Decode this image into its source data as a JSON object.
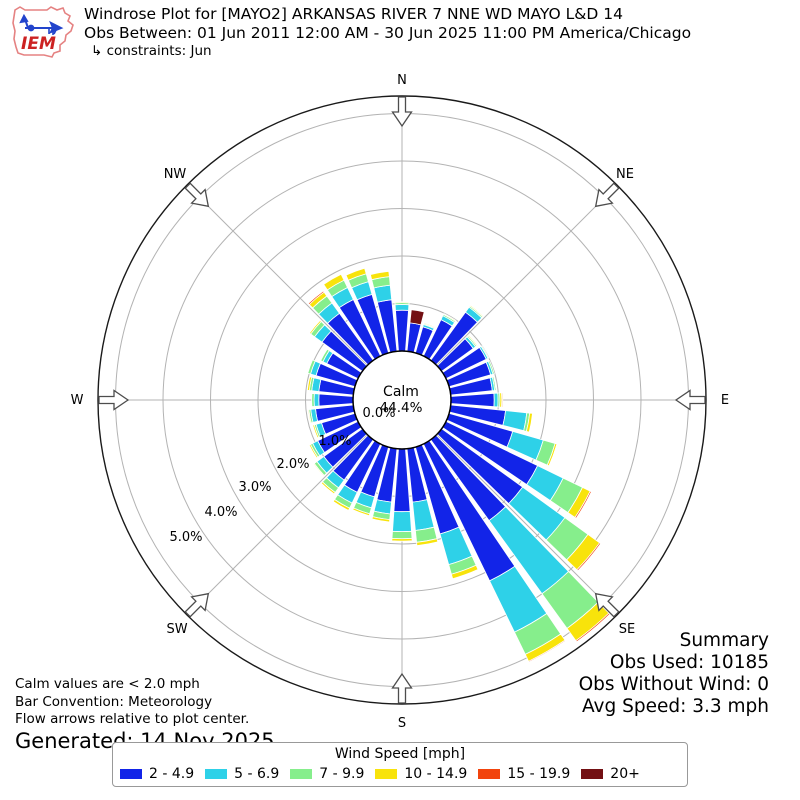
{
  "header": {
    "title": "Windrose Plot for [MAYO2] ARKANSAS RIVER 7 NNE WD MAYO L&D 14",
    "subtitle": "Obs Between: 01 Jun 2011 12:00 AM - 30 Jun 2025 11:00 PM America/Chicago",
    "constraints": "↳ constraints: Jun",
    "logo_text": "IEM"
  },
  "rose": {
    "calm_label": "Calm",
    "calm_value": "44.4%",
    "ring_labels": [
      "0.0%",
      "1.0%",
      "2.0%",
      "3.0%",
      "4.0%",
      "5.0%"
    ],
    "compass": [
      {
        "label": "N",
        "deg": 0
      },
      {
        "label": "NE",
        "deg": 45
      },
      {
        "label": "E",
        "deg": 90
      },
      {
        "label": "SE",
        "deg": 135
      },
      {
        "label": "S",
        "deg": 180
      },
      {
        "label": "SW",
        "deg": 225
      },
      {
        "label": "W",
        "deg": 270
      },
      {
        "label": "NW",
        "deg": 315
      }
    ]
  },
  "chart_data": {
    "type": "windrose",
    "title": "Windrose Plot for [MAYO2] ARKANSAS RIVER 7 NNE WD MAYO L&D 14",
    "units": "percent frequency of wind direction, 10-degree sectors",
    "bar_convention": "Meteorology",
    "calm_percent": 44.4,
    "ring_percent": [
      0,
      1,
      2,
      3,
      4,
      5
    ],
    "speed_bins": [
      {
        "label": "2 - 4.9",
        "color": "#1224e8"
      },
      {
        "label": "5 - 6.9",
        "color": "#2ed1e8"
      },
      {
        "label": "7 - 9.9",
        "color": "#86ee8c"
      },
      {
        "label": "10 - 14.9",
        "color": "#f8e30b"
      },
      {
        "label": "15 - 19.9",
        "color": "#f2440d"
      },
      {
        "label": "20+",
        "color": "#731013"
      }
    ],
    "bars": [
      {
        "deg": 0,
        "segments": [
          0.86,
          0.12,
          0.04,
          0.02,
          0,
          0
        ]
      },
      {
        "deg": 10,
        "segments": [
          0.6,
          0,
          0,
          0,
          0,
          0.28
        ]
      },
      {
        "deg": 20,
        "segments": [
          0.57,
          0.05,
          0.02,
          0.02,
          0,
          0
        ]
      },
      {
        "deg": 30,
        "segments": [
          0.85,
          0.09,
          0.03,
          0.02,
          0,
          0
        ]
      },
      {
        "deg": 40,
        "segments": [
          1.25,
          0.13,
          0.03,
          0.02,
          0,
          0
        ]
      },
      {
        "deg": 50,
        "segments": [
          0.82,
          0.06,
          0.03,
          0.02,
          0,
          0
        ]
      },
      {
        "deg": 60,
        "segments": [
          0.94,
          0.04,
          0.02,
          0,
          0,
          0
        ]
      },
      {
        "deg": 70,
        "segments": [
          0.91,
          0.05,
          0.03,
          0,
          0,
          0
        ]
      },
      {
        "deg": 80,
        "segments": [
          0.88,
          0.05,
          0.03,
          0.01,
          0,
          0
        ]
      },
      {
        "deg": 90,
        "segments": [
          0.91,
          0.08,
          0.04,
          0.04,
          0.02,
          0
        ]
      },
      {
        "deg": 100,
        "segments": [
          1.16,
          0.45,
          0.06,
          0.06,
          0,
          0
        ]
      },
      {
        "deg": 110,
        "segments": [
          1.39,
          0.67,
          0.26,
          0.04,
          0.01,
          0
        ]
      },
      {
        "deg": 120,
        "segments": [
          2.14,
          0.6,
          0.45,
          0.18,
          0.03,
          0
        ]
      },
      {
        "deg": 130,
        "segments": [
          2.1,
          1.1,
          0.6,
          0.3,
          0.03,
          0
        ]
      },
      {
        "deg": 140,
        "segments": [
          2.1,
          1.9,
          0.9,
          0.32,
          0.03,
          0
        ]
      },
      {
        "deg": 150,
        "segments": [
          3.2,
          1.2,
          0.52,
          0.16,
          0.02,
          0
        ]
      },
      {
        "deg": 160,
        "segments": [
          1.9,
          0.67,
          0.21,
          0.1,
          0,
          0
        ]
      },
      {
        "deg": 170,
        "segments": [
          1.13,
          0.6,
          0.25,
          0.07,
          0,
          0
        ]
      },
      {
        "deg": 180,
        "segments": [
          1.32,
          0.42,
          0.15,
          0.05,
          0,
          0
        ]
      },
      {
        "deg": 190,
        "segments": [
          1.13,
          0.25,
          0.12,
          0.05,
          0,
          0
        ]
      },
      {
        "deg": 200,
        "segments": [
          1.09,
          0.24,
          0.13,
          0.04,
          0,
          0
        ]
      },
      {
        "deg": 210,
        "segments": [
          1.13,
          0.25,
          0.12,
          0.05,
          0,
          0
        ]
      },
      {
        "deg": 220,
        "segments": [
          1.05,
          0.2,
          0.12,
          0.04,
          0,
          0
        ]
      },
      {
        "deg": 230,
        "segments": [
          1.0,
          0.18,
          0.07,
          0.02,
          0,
          0
        ]
      },
      {
        "deg": 240,
        "segments": [
          0.94,
          0.12,
          0.05,
          0.03,
          0,
          0
        ]
      },
      {
        "deg": 250,
        "segments": [
          0.73,
          0.12,
          0.04,
          0.03,
          0,
          0
        ]
      },
      {
        "deg": 260,
        "segments": [
          0.8,
          0.1,
          0.04,
          0.02,
          0,
          0
        ]
      },
      {
        "deg": 270,
        "segments": [
          0.72,
          0.1,
          0.05,
          0,
          0,
          0
        ]
      },
      {
        "deg": 280,
        "segments": [
          0.73,
          0.15,
          0.05,
          0.04,
          0,
          0
        ]
      },
      {
        "deg": 290,
        "segments": [
          0.85,
          0.12,
          0.06,
          0,
          0,
          0
        ]
      },
      {
        "deg": 300,
        "segments": [
          0.73,
          0.09,
          0.05,
          0,
          0,
          0
        ]
      },
      {
        "deg": 310,
        "segments": [
          1.05,
          0.19,
          0.1,
          0.03,
          0,
          0
        ]
      },
      {
        "deg": 320,
        "segments": [
          1.22,
          0.27,
          0.18,
          0.1,
          0.03,
          0
        ]
      },
      {
        "deg": 330,
        "segments": [
          1.32,
          0.28,
          0.17,
          0.14,
          0,
          0
        ]
      },
      {
        "deg": 340,
        "segments": [
          1.28,
          0.28,
          0.17,
          0.12,
          0,
          0
        ]
      },
      {
        "deg": 350,
        "segments": [
          1.09,
          0.31,
          0.18,
          0.11,
          0,
          0
        ]
      }
    ]
  },
  "summary": {
    "title": "Summary",
    "obs_used": "Obs Used: 10185",
    "obs_without_wind": "Obs Without Wind: 0",
    "avg_speed": "Avg Speed: 3.3 mph"
  },
  "footer": {
    "line1": "Calm values are < 2.0 mph",
    "line2": "Bar Convention: Meteorology",
    "line3": "Flow arrows relative to plot center.",
    "generated": "Generated: 14 Nov 2025"
  },
  "legend": {
    "title": "Wind Speed [mph]"
  }
}
